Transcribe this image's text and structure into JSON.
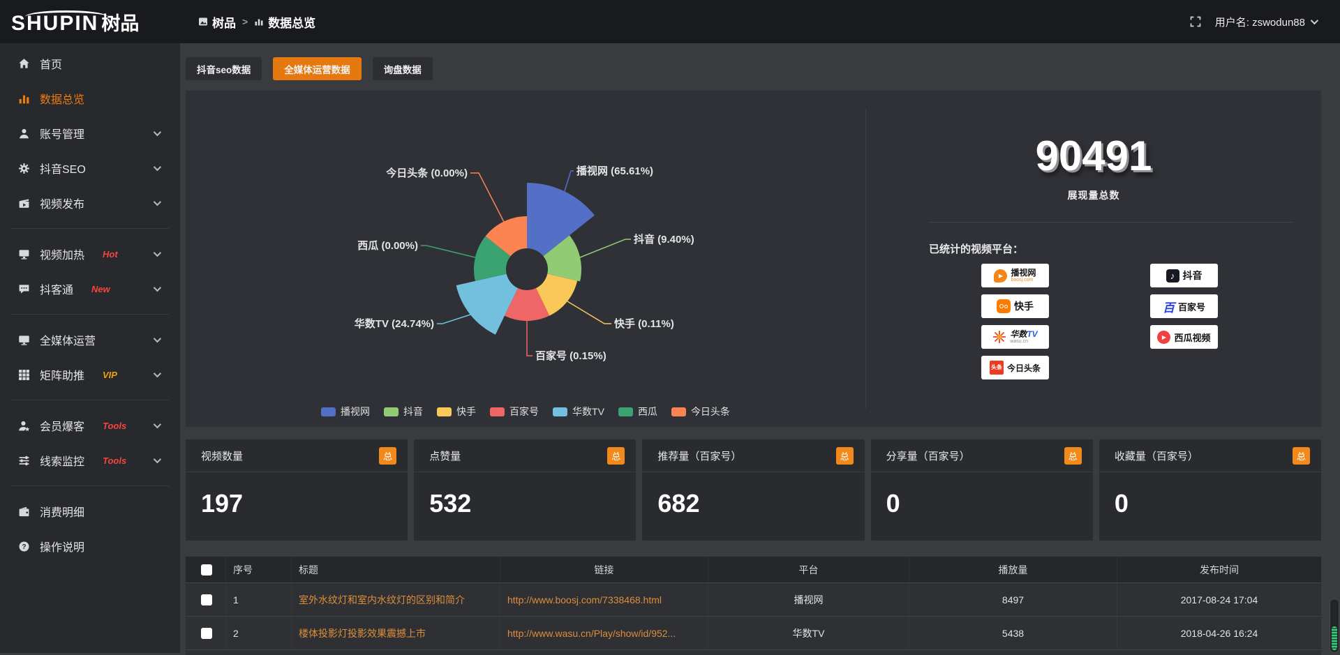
{
  "topbar": {
    "logo_main": "SHUPIN",
    "logo_suffix": "树品",
    "breadcrumb_root": "树品",
    "breadcrumb_sep": ">",
    "breadcrumb_current": "数据总览",
    "username": "用户名: zswodun88"
  },
  "sidebar": {
    "items": [
      {
        "label": "首页",
        "icon": "home"
      },
      {
        "label": "数据总览",
        "icon": "bar-chart",
        "active": true
      },
      {
        "label": "账号管理",
        "icon": "user",
        "chevron": true
      },
      {
        "label": "抖音SEO",
        "icon": "gear",
        "chevron": true
      },
      {
        "label": "视频发布",
        "icon": "video-publish",
        "chevron": true,
        "divider_after": true
      },
      {
        "label": "视频加热",
        "icon": "monitor-heat",
        "chevron": true,
        "tag": "Hot",
        "tag_color": "#f5463d"
      },
      {
        "label": "抖客通",
        "icon": "chat",
        "chevron": true,
        "tag": "New",
        "tag_color": "#f5463d",
        "divider_after": true
      },
      {
        "label": "全媒体运营",
        "icon": "display",
        "chevron": true
      },
      {
        "label": "矩阵助推",
        "icon": "grid",
        "chevron": true,
        "tag": "VIP",
        "tag_color": "#eea213",
        "divider_after": true
      },
      {
        "label": "会员爆客",
        "icon": "member",
        "chevron": true,
        "tag": "Tools",
        "tag_color": "#f5463d"
      },
      {
        "label": "线索监控",
        "icon": "sliders",
        "chevron": true,
        "tag": "Tools",
        "tag_color": "#f5463d",
        "divider_after": true
      },
      {
        "label": "消费明细",
        "icon": "wallet"
      },
      {
        "label": "操作说明",
        "icon": "help"
      }
    ]
  },
  "tabs": [
    {
      "label": "抖音seo数据"
    },
    {
      "label": "全媒体运营数据",
      "active": true
    },
    {
      "label": "询盘数据"
    }
  ],
  "chart_data": {
    "type": "pie",
    "variant": "nightingale-rose",
    "legend_position": "bottom",
    "categories": [
      "播视网",
      "抖音",
      "快手",
      "百家号",
      "华数TV",
      "西瓜",
      "今日头条"
    ],
    "values": [
      65.61,
      9.4,
      0.11,
      0.15,
      24.74,
      0.0,
      0.0
    ],
    "unit": "%",
    "slices": [
      {
        "label": "播视网",
        "pct": 65.61,
        "display": "播视网 (65.61%)",
        "color": "#5470c6"
      },
      {
        "label": "抖音",
        "pct": 9.4,
        "display": "抖音 (9.40%)",
        "color": "#91cc75"
      },
      {
        "label": "快手",
        "pct": 0.11,
        "display": "快手 (0.11%)",
        "color": "#fac858"
      },
      {
        "label": "百家号",
        "pct": 0.15,
        "display": "百家号 (0.15%)",
        "color": "#ee6666"
      },
      {
        "label": "华数TV",
        "pct": 24.74,
        "display": "华数TV (24.74%)",
        "color": "#73c0de"
      },
      {
        "label": "西瓜",
        "pct": 0.0,
        "display": "西瓜 (0.00%)",
        "color": "#3ba272"
      },
      {
        "label": "今日头条",
        "pct": 0.0,
        "display": "今日头条 (0.00%)",
        "color": "#fc8452"
      }
    ]
  },
  "summary": {
    "total_value": "90491",
    "total_label": "展现量总数",
    "platforms_title": "已统计的视频平台：",
    "platforms": [
      {
        "name": "播视网",
        "sub": "boosj.com",
        "logo": "boosj"
      },
      {
        "name": "抖音",
        "logo": "douyin"
      },
      {
        "name": "快手",
        "logo": "kuaishou"
      },
      {
        "name": "百家号",
        "logo": "baijiahao"
      },
      {
        "name": "华数TV",
        "sub": "wasu.cn",
        "logo": "wasu"
      },
      {
        "name": "西瓜视频",
        "logo": "xigua"
      },
      {
        "name": "今日头条",
        "logo": "toutiao"
      }
    ]
  },
  "stat_cards": [
    {
      "title": "视频数量",
      "badge": "总",
      "value": "197"
    },
    {
      "title": "点赞量",
      "badge": "总",
      "value": "532"
    },
    {
      "title": "推荐量（百家号）",
      "badge": "总",
      "value": "682"
    },
    {
      "title": "分享量（百家号）",
      "badge": "总",
      "value": "0"
    },
    {
      "title": "收藏量（百家号）",
      "badge": "总",
      "value": "0"
    }
  ],
  "table": {
    "headers": [
      "序号",
      "标题",
      "链接",
      "平台",
      "播放量",
      "发布时间"
    ],
    "rows": [
      {
        "index": "1",
        "title": "室外水纹灯和室内水纹灯的区别和简介",
        "link": "http://www.boosj.com/7338468.html",
        "platform": "播视网",
        "views": "8497",
        "time": "2017-08-24 17:04"
      },
      {
        "index": "2",
        "title": "楼体投影灯投影效果震撼上市",
        "link": "http://www.wasu.cn/Play/show/id/952...",
        "platform": "华数TV",
        "views": "5438",
        "time": "2018-04-26 16:24"
      }
    ]
  }
}
